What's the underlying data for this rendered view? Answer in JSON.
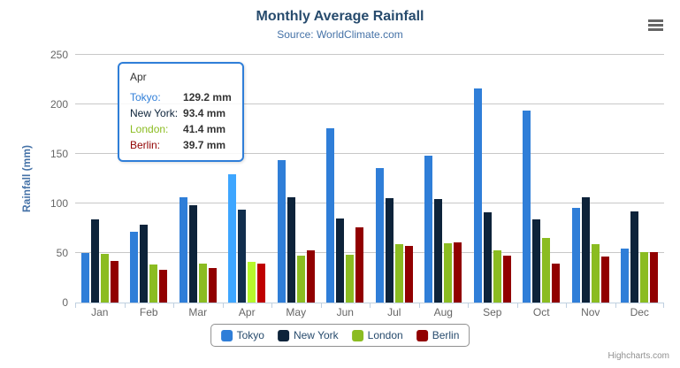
{
  "chart_data": {
    "type": "bar",
    "title": "Monthly Average Rainfall",
    "subtitle": "Source: WorldClimate.com",
    "ylabel": "Rainfall (mm)",
    "xlabel": "",
    "unit": "mm",
    "categories": [
      "Jan",
      "Feb",
      "Mar",
      "Apr",
      "May",
      "Jun",
      "Jul",
      "Aug",
      "Sep",
      "Oct",
      "Nov",
      "Dec"
    ],
    "series": [
      {
        "name": "Tokyo",
        "color": "#2f7ed8",
        "values": [
          49.9,
          71.5,
          106.4,
          129.2,
          144.0,
          176.0,
          135.6,
          148.5,
          216.4,
          194.1,
          95.6,
          54.4
        ]
      },
      {
        "name": "New York",
        "color": "#0d233a",
        "values": [
          83.6,
          78.8,
          98.5,
          93.4,
          106.0,
          84.5,
          105.0,
          104.3,
          91.2,
          83.5,
          106.6,
          92.3
        ]
      },
      {
        "name": "London",
        "color": "#8bbc21",
        "values": [
          48.9,
          38.8,
          39.3,
          41.4,
          47.0,
          48.3,
          59.0,
          59.6,
          52.4,
          65.2,
          59.3,
          51.2
        ]
      },
      {
        "name": "Berlin",
        "color": "#910000",
        "values": [
          42.4,
          33.2,
          34.5,
          39.7,
          52.6,
          75.5,
          57.4,
          60.4,
          47.6,
          39.1,
          46.8,
          51.1
        ]
      }
    ],
    "yticks": [
      0,
      50,
      100,
      150,
      200,
      250
    ],
    "ylim": [
      0,
      250
    ],
    "grid": true,
    "legend_position": "bottom",
    "hovered_category": "Apr",
    "tooltip": {
      "category": "Apr",
      "rows": [
        {
          "series": "Tokyo",
          "value": 129.2,
          "label": "129.2 mm"
        },
        {
          "series": "New York",
          "value": 93.4,
          "label": "93.4 mm"
        },
        {
          "series": "London",
          "value": 41.4,
          "label": "41.4 mm"
        },
        {
          "series": "Berlin",
          "value": 39.7,
          "label": "39.7 mm"
        }
      ]
    }
  },
  "credits": {
    "label": "Highcharts.com"
  },
  "context_menu": {
    "icon": "hamburger-icon"
  },
  "colors": {
    "title": "#274b6d",
    "subtitle": "#4572a7",
    "grid": "#c8c8c8",
    "axis_line": "#c0d0e0",
    "tick_label": "#666666",
    "tooltip_border": "#2f7ed8",
    "legend_border": "#909090"
  }
}
